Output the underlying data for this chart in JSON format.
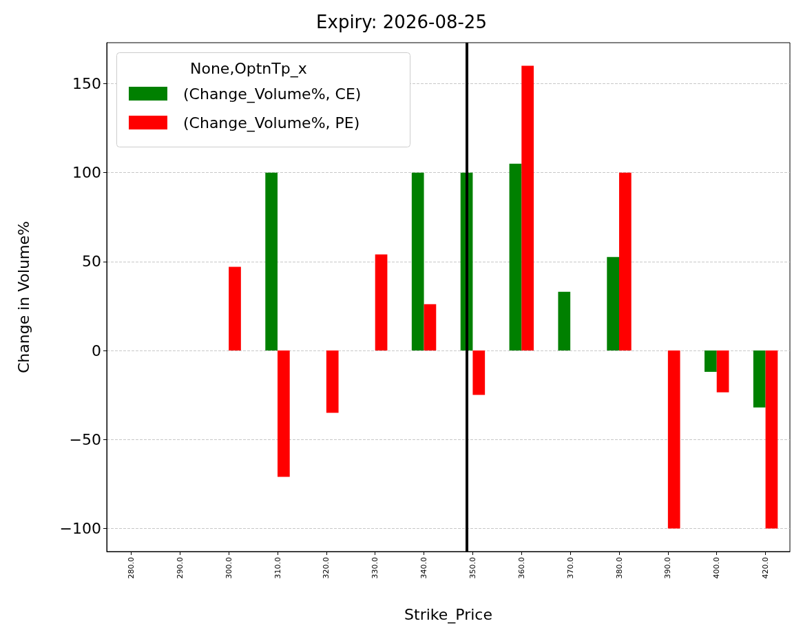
{
  "chart_data": {
    "type": "bar",
    "title": "Expiry: 2026-08-25",
    "xlabel": "Strike_Price",
    "ylabel": "Change in Volume%",
    "legend_title": "None,OptnTp_x",
    "categories": [
      "280.0",
      "290.0",
      "300.0",
      "310.0",
      "320.0",
      "330.0",
      "340.0",
      "350.0",
      "360.0",
      "370.0",
      "380.0",
      "390.0",
      "400.0",
      "420.0"
    ],
    "series": [
      {
        "name": "(Change_Volume%, CE)",
        "color": "#008000",
        "values": [
          null,
          null,
          null,
          100,
          null,
          null,
          100,
          100,
          105,
          33,
          52.5,
          null,
          -12,
          -32
        ]
      },
      {
        "name": "(Change_Volume%, PE)",
        "color": "#ff0000",
        "values": [
          null,
          null,
          47,
          -71,
          -35,
          54,
          26,
          -25,
          160,
          null,
          100,
          -100,
          -23.5,
          -100
        ]
      }
    ],
    "ylim": [
      -113,
      173
    ],
    "yticks": [
      -100,
      -50,
      0,
      50,
      100,
      150
    ],
    "grid": "y",
    "legend": "top left",
    "ref_lines": [
      {
        "axis": "x",
        "value": "350.0",
        "color": "#000000"
      }
    ]
  }
}
